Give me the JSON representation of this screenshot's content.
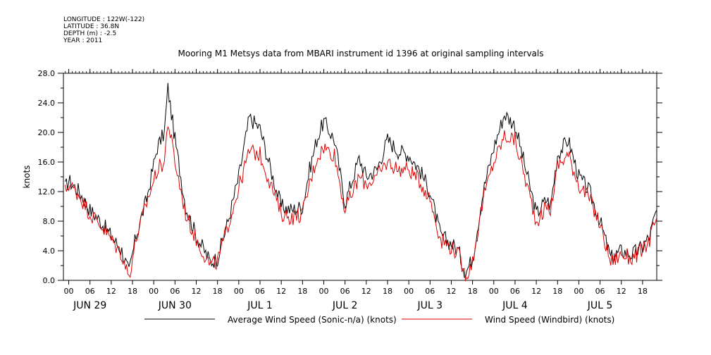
{
  "header": {
    "longitude": "LONGITUDE : 122W(-122)",
    "latitude": "LATITUDE : 36.8N",
    "depth": "DEPTH (m) : -2.5",
    "year": "YEAR : 2011"
  },
  "chart_data": {
    "type": "line",
    "title": "Mooring M1 Metsys data from MBARI instrument id 1396 at original sampling intervals",
    "ylabel": "knots",
    "xlabel": "",
    "ylim": [
      0,
      28
    ],
    "y_ticks": [
      "0.0",
      "4.0",
      "8.0",
      "12.0",
      "16.0",
      "20.0",
      "24.0",
      "28.0"
    ],
    "x_hour_labels": [
      "00",
      "06",
      "12",
      "18",
      "00",
      "06",
      "12",
      "18",
      "00",
      "06",
      "12",
      "18",
      "00",
      "06",
      "12",
      "18",
      "00",
      "06",
      "12",
      "18",
      "00",
      "06",
      "12",
      "18",
      "00",
      "06",
      "12",
      "18"
    ],
    "x_date_labels": [
      "JUN 29",
      "JUN 30",
      "JUL  1",
      "JUL  2",
      "JUL  3",
      "JUL  4",
      "JUL  5"
    ],
    "x_unit": "hours since JUN 29 00:00",
    "xlim": [
      -1.5,
      166
    ],
    "grid": false,
    "legend_position": "bottom",
    "series": [
      {
        "name": "Average Wind Speed (Sonic-n/a) (knots)",
        "color": "#000000",
        "x": [
          -1,
          0,
          3,
          6,
          9,
          12,
          15,
          17,
          19,
          22,
          25,
          27,
          28,
          30,
          33,
          36,
          40,
          42,
          45,
          48,
          51,
          54,
          57,
          60,
          63,
          66,
          68,
          70,
          72,
          75,
          78,
          82,
          84,
          87,
          90,
          93,
          96,
          99,
          102,
          105,
          108,
          110,
          112,
          114,
          117,
          120,
          123,
          126,
          129,
          132,
          135,
          136,
          138,
          141,
          144,
          147,
          150,
          153,
          156,
          159,
          162,
          164,
          166
        ],
        "values": [
          12.5,
          13.5,
          12,
          9.5,
          8,
          6,
          4,
          1,
          6,
          11,
          18,
          20,
          26,
          19,
          10,
          6,
          2.5,
          3,
          8,
          14,
          22,
          20.5,
          15,
          10,
          9.5,
          10,
          15,
          19,
          21.5,
          19,
          10.5,
          16.5,
          14,
          15,
          19,
          17.5,
          17,
          15,
          12,
          6,
          5,
          4,
          1,
          3,
          12,
          18,
          22.5,
          21,
          15,
          9,
          11,
          10,
          17,
          19,
          14,
          12,
          8,
          3,
          4,
          3.5,
          4.5,
          6,
          9.5
        ]
      },
      {
        "name": "Wind Speed (Windbird) (knots)",
        "color": "#e00000",
        "x": [
          -1,
          0,
          3,
          6,
          9,
          12,
          15,
          17,
          19,
          22,
          25,
          27,
          28,
          30,
          33,
          36,
          40,
          42,
          45,
          48,
          51,
          54,
          57,
          60,
          63,
          66,
          68,
          70,
          72,
          75,
          78,
          82,
          84,
          87,
          90,
          93,
          96,
          99,
          102,
          105,
          108,
          110,
          112,
          114,
          117,
          120,
          123,
          126,
          129,
          132,
          135,
          136,
          138,
          141,
          144,
          147,
          150,
          153,
          156,
          159,
          162,
          164,
          166
        ],
        "values": [
          12,
          13,
          11.5,
          9,
          7.5,
          5.5,
          3.5,
          0.5,
          5.5,
          10.5,
          15,
          16,
          21.5,
          16,
          9,
          5.5,
          2,
          2.5,
          7.5,
          12.5,
          17.5,
          17,
          13,
          9,
          8.5,
          9,
          13,
          16.5,
          18,
          17,
          9.5,
          14,
          13,
          14,
          16,
          15,
          15,
          13.5,
          11,
          5.5,
          4.5,
          3.5,
          0.5,
          2.5,
          11,
          16,
          19.5,
          19,
          13.5,
          8,
          10,
          9.5,
          15.5,
          17,
          13,
          11,
          7.5,
          2.5,
          3.5,
          3,
          4,
          5.5,
          8.5
        ]
      }
    ]
  }
}
